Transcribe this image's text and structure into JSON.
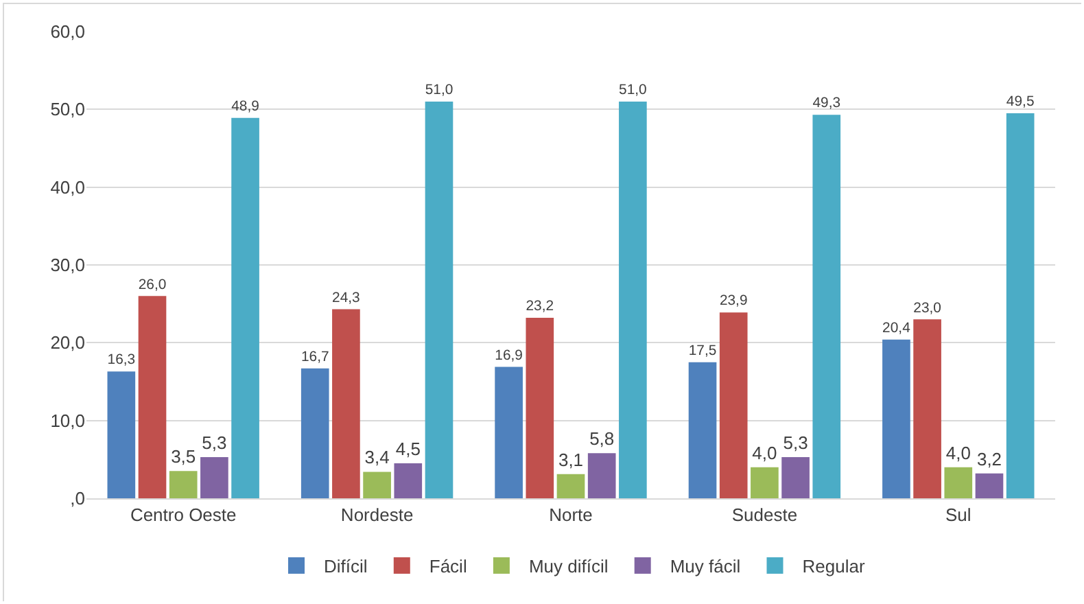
{
  "chart_data": {
    "type": "bar",
    "categories": [
      "Centro Oeste",
      "Nordeste",
      "Norte",
      "Sudeste",
      "Sul"
    ],
    "series": [
      {
        "name": "Difícil",
        "color": "#4f81bd",
        "values": [
          16.3,
          16.7,
          16.9,
          17.5,
          20.4
        ],
        "value_labels": [
          "16,3",
          "16,7",
          "16,9",
          "17,5",
          "20,4"
        ]
      },
      {
        "name": "Fácil",
        "color": "#c0504d",
        "values": [
          26.0,
          24.3,
          23.2,
          23.9,
          23.0
        ],
        "value_labels": [
          "26,0",
          "24,3",
          "23,2",
          "23,9",
          "23,0"
        ]
      },
      {
        "name": "Muy difícil",
        "color": "#9bbb59",
        "values": [
          3.5,
          3.4,
          3.1,
          4.0,
          4.0
        ],
        "value_labels": [
          "3,5",
          "3,4",
          "3,1",
          "4,0",
          "4,0"
        ]
      },
      {
        "name": "Muy fácil",
        "color": "#8064a2",
        "values": [
          5.3,
          4.5,
          5.8,
          5.3,
          3.2
        ],
        "value_labels": [
          "5,3",
          "4,5",
          "5,8",
          "5,3",
          "3,2"
        ]
      },
      {
        "name": "Regular",
        "color": "#4bacc6",
        "values": [
          48.9,
          51.0,
          51.0,
          49.3,
          49.5
        ],
        "value_labels": [
          "48,9",
          "51,0",
          "51,0",
          "49,3",
          "49,5"
        ]
      }
    ],
    "ylim": [
      0,
      60
    ],
    "yticks": [
      {
        "value": 0,
        "label": ",0"
      },
      {
        "value": 10,
        "label": "10,0"
      },
      {
        "value": 20,
        "label": "20,0"
      },
      {
        "value": 30,
        "label": "30,0"
      },
      {
        "value": 40,
        "label": "40,0"
      },
      {
        "value": 50,
        "label": "50,0"
      },
      {
        "value": 60,
        "label": "60,0"
      }
    ],
    "grid": "y",
    "legend": "bottom"
  }
}
